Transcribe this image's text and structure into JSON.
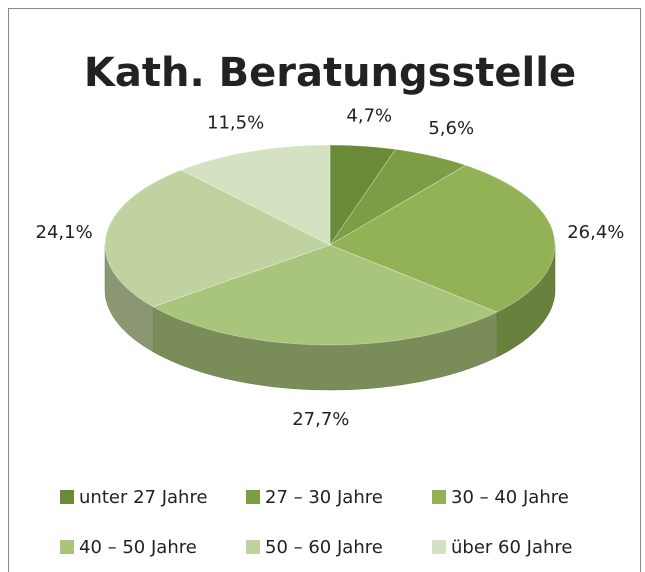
{
  "chart_data": {
    "type": "pie3d",
    "title": "Kath. Beratungsstelle",
    "categories": [
      "unter 27 Jahre",
      "27 – 30 Jahre",
      "30 – 40 Jahre",
      "40 – 50 Jahre",
      "50 – 60 Jahre",
      "über 60 Jahre"
    ],
    "values": [
      4.7,
      5.6,
      26.4,
      27.7,
      24.1,
      11.5
    ],
    "value_labels": [
      "4,7%",
      "5,6%",
      "26,4%",
      "27,7%",
      "24,1%",
      "11,5%"
    ],
    "colors": [
      "#6a8a37",
      "#7c9c45",
      "#93b255",
      "#a9c47b",
      "#bfd29f",
      "#d5e1c3"
    ],
    "legend": "bottom"
  }
}
